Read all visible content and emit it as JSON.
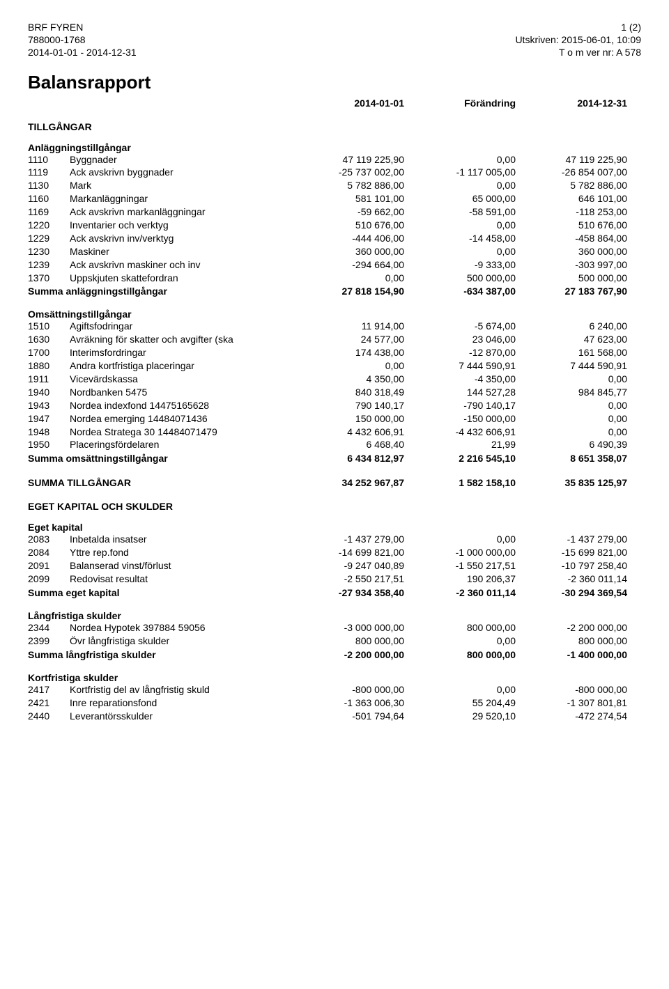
{
  "header": {
    "company": "BRF FYREN",
    "org_no": "788000-1768",
    "period": "2014-01-01 - 2014-12-31",
    "page": "1 (2)",
    "printed": "Utskriven: 2015-06-01, 10:09",
    "ver": "T o m ver nr: A 578"
  },
  "title": "Balansrapport",
  "columns": {
    "c1": "2014-01-01",
    "c2": "Förändring",
    "c3": "2014-12-31"
  },
  "sections": [
    {
      "name": "TILLGÅNGAR",
      "subsections": [
        {
          "name": "Anläggningstillgångar",
          "rows": [
            {
              "code": "1110",
              "label": "Byggnader",
              "v1": "47 119 225,90",
              "v2": "0,00",
              "v3": "47 119 225,90"
            },
            {
              "code": "1119",
              "label": "Ack avskrivn byggnader",
              "v1": "-25 737 002,00",
              "v2": "-1 117 005,00",
              "v3": "-26 854 007,00"
            },
            {
              "code": "1130",
              "label": "Mark",
              "v1": "5 782 886,00",
              "v2": "0,00",
              "v3": "5 782 886,00"
            },
            {
              "code": "1160",
              "label": "Markanläggningar",
              "v1": "581 101,00",
              "v2": "65 000,00",
              "v3": "646 101,00"
            },
            {
              "code": "1169",
              "label": "Ack avskrivn markanläggningar",
              "v1": "-59 662,00",
              "v2": "-58 591,00",
              "v3": "-118 253,00"
            },
            {
              "code": "1220",
              "label": "Inventarier och verktyg",
              "v1": "510 676,00",
              "v2": "0,00",
              "v3": "510 676,00"
            },
            {
              "code": "1229",
              "label": "Ack avskrivn inv/verktyg",
              "v1": "-444 406,00",
              "v2": "-14 458,00",
              "v3": "-458 864,00"
            },
            {
              "code": "1230",
              "label": "Maskiner",
              "v1": "360 000,00",
              "v2": "0,00",
              "v3": "360 000,00"
            },
            {
              "code": "1239",
              "label": "Ack avskrivn maskiner och inv",
              "v1": "-294 664,00",
              "v2": "-9 333,00",
              "v3": "-303 997,00"
            },
            {
              "code": "1370",
              "label": "Uppskjuten skattefordran",
              "v1": "0,00",
              "v2": "500 000,00",
              "v3": "500 000,00"
            }
          ],
          "sum": {
            "label": "Summa anläggningstillgångar",
            "v1": "27 818 154,90",
            "v2": "-634 387,00",
            "v3": "27 183 767,90"
          }
        },
        {
          "name": "Omsättningstillgångar",
          "rows": [
            {
              "code": "1510",
              "label": "Agiftsfodringar",
              "v1": "11 914,00",
              "v2": "-5 674,00",
              "v3": "6 240,00"
            },
            {
              "code": "1630",
              "label": "Avräkning för skatter och avgifter (ska",
              "v1": "24 577,00",
              "v2": "23 046,00",
              "v3": "47 623,00"
            },
            {
              "code": "1700",
              "label": "Interimsfordringar",
              "v1": "174 438,00",
              "v2": "-12 870,00",
              "v3": "161 568,00"
            },
            {
              "code": "1880",
              "label": "Andra kortfristiga placeringar",
              "v1": "0,00",
              "v2": "7 444 590,91",
              "v3": "7 444 590,91"
            },
            {
              "code": "1911",
              "label": "Vicevärdskassa",
              "v1": "4 350,00",
              "v2": "-4 350,00",
              "v3": "0,00"
            },
            {
              "code": "1940",
              "label": "Nordbanken 5475",
              "v1": "840 318,49",
              "v2": "144 527,28",
              "v3": "984 845,77"
            },
            {
              "code": "1943",
              "label": "Nordea indexfond 14475165628",
              "v1": "790 140,17",
              "v2": "-790 140,17",
              "v3": "0,00"
            },
            {
              "code": "1947",
              "label": "Nordea emerging 14484071436",
              "v1": "150 000,00",
              "v2": "-150 000,00",
              "v3": "0,00"
            },
            {
              "code": "1948",
              "label": "Nordea Stratega 30 14484071479",
              "v1": "4 432 606,91",
              "v2": "-4 432 606,91",
              "v3": "0,00"
            },
            {
              "code": "1950",
              "label": "Placeringsfördelaren",
              "v1": "6 468,40",
              "v2": "21,99",
              "v3": "6 490,39"
            }
          ],
          "sum": {
            "label": "Summa omsättningstillgångar",
            "v1": "6 434 812,97",
            "v2": "2 216 545,10",
            "v3": "8 651 358,07"
          }
        }
      ],
      "total": {
        "label": "SUMMA TILLGÅNGAR",
        "v1": "34 252 967,87",
        "v2": "1 582 158,10",
        "v3": "35 835 125,97"
      }
    },
    {
      "name": "EGET KAPITAL OCH SKULDER",
      "subsections": [
        {
          "name": "Eget kapital",
          "rows": [
            {
              "code": "2083",
              "label": "Inbetalda insatser",
              "v1": "-1 437 279,00",
              "v2": "0,00",
              "v3": "-1 437 279,00"
            },
            {
              "code": "2084",
              "label": "Yttre rep.fond",
              "v1": "-14 699 821,00",
              "v2": "-1 000 000,00",
              "v3": "-15 699 821,00"
            },
            {
              "code": "2091",
              "label": "Balanserad vinst/förlust",
              "v1": "-9 247 040,89",
              "v2": "-1 550 217,51",
              "v3": "-10 797 258,40"
            },
            {
              "code": "2099",
              "label": "Redovisat resultat",
              "v1": "-2 550 217,51",
              "v2": "190 206,37",
              "v3": "-2 360 011,14"
            }
          ],
          "sum": {
            "label": "Summa eget kapital",
            "v1": "-27 934 358,40",
            "v2": "-2 360 011,14",
            "v3": "-30 294 369,54"
          }
        },
        {
          "name": "Långfristiga skulder",
          "rows": [
            {
              "code": "2344",
              "label": "Nordea Hypotek 397884 59056",
              "v1": "-3 000 000,00",
              "v2": "800 000,00",
              "v3": "-2 200 000,00"
            },
            {
              "code": "2399",
              "label": "Övr långfristiga skulder",
              "v1": "800 000,00",
              "v2": "0,00",
              "v3": "800 000,00"
            }
          ],
          "sum": {
            "label": "Summa långfristiga skulder",
            "v1": "-2 200 000,00",
            "v2": "800 000,00",
            "v3": "-1 400 000,00"
          }
        },
        {
          "name": "Kortfristiga skulder",
          "rows": [
            {
              "code": "2417",
              "label": "Kortfristig del av långfristig skuld",
              "v1": "-800 000,00",
              "v2": "0,00",
              "v3": "-800 000,00"
            },
            {
              "code": "2421",
              "label": "Inre reparationsfond",
              "v1": "-1 363 006,30",
              "v2": "55 204,49",
              "v3": "-1 307 801,81"
            },
            {
              "code": "2440",
              "label": "Leverantörsskulder",
              "v1": "-501 794,64",
              "v2": "29 520,10",
              "v3": "-472 274,54"
            }
          ]
        }
      ]
    }
  ]
}
